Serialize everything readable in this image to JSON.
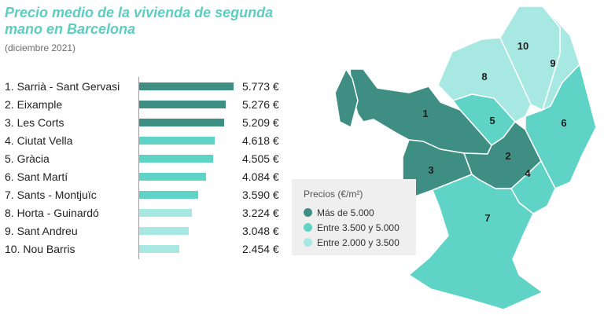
{
  "colors": {
    "high": "#3f8e83",
    "mid": "#5fd3c5",
    "low": "#a7e8e2",
    "title": "#5ccdc0"
  },
  "chart_data": {
    "type": "bar",
    "orientation": "horizontal",
    "title": "Precio medio de la vivienda de segunda mano en Barcelona",
    "subtitle": "(diciembre 2021)",
    "categories": [
      "1. Sarrià - Sant Gervasi",
      "2. Eixample",
      "3. Les Corts",
      "4. Ciutat Vella",
      "5. Gràcia",
      "6. Sant Martí",
      "7. Sants - Montjuïc",
      "8. Horta - Guinardó",
      "9. Sant Andreu",
      "10. Nou Barris"
    ],
    "values": [
      5773,
      5276,
      5209,
      4618,
      4505,
      4084,
      3590,
      3224,
      3048,
      2454
    ],
    "value_labels": [
      "5.773 €",
      "5.276 €",
      "5.209 €",
      "4.618 €",
      "4.505 €",
      "4.084 €",
      "3.590 €",
      "3.224 €",
      "3.048 €",
      "2.454 €"
    ],
    "xlim": [
      0,
      5773
    ],
    "legend": {
      "title": "Precios (€/m²)",
      "position": "bottom-center",
      "items": [
        {
          "label": "Más de 5.000",
          "color": "#3f8e83"
        },
        {
          "label": "Entre 3.500 y 5.000",
          "color": "#5fd3c5"
        },
        {
          "label": "Entre 2.000 y 3.500",
          "color": "#a7e8e2"
        }
      ]
    }
  },
  "map": {
    "district_numbers": [
      "1",
      "2",
      "3",
      "4",
      "5",
      "6",
      "7",
      "8",
      "9",
      "10"
    ]
  }
}
